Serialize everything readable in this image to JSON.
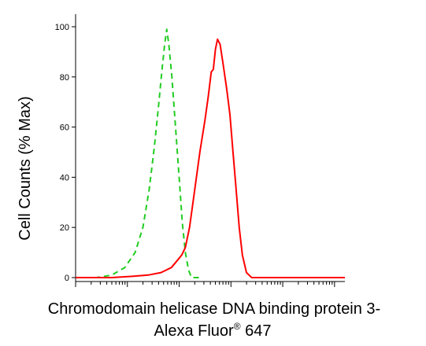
{
  "chart_data": {
    "type": "line",
    "ylabel": "Cell Counts (% Max)",
    "xlabel_line1": "Chromodomain helicase DNA binding protein 3-",
    "xlabel_line2_prefix": "Alexa Fluor",
    "xlabel_line2_mark": "®",
    "xlabel_line2_suffix": " 647",
    "y_ticks": [
      "0",
      "20",
      "40",
      "60",
      "80",
      "100"
    ],
    "ylim": [
      0,
      100
    ],
    "x_scale": "log",
    "xlim_decades": [
      0,
      5.2
    ],
    "series": [
      {
        "color": "#22cc22",
        "dash": "dashed",
        "points": [
          [
            0.0,
            0
          ],
          [
            0.4,
            0
          ],
          [
            0.7,
            1
          ],
          [
            0.95,
            4
          ],
          [
            1.15,
            10
          ],
          [
            1.3,
            20
          ],
          [
            1.42,
            35
          ],
          [
            1.52,
            52
          ],
          [
            1.6,
            68
          ],
          [
            1.67,
            83
          ],
          [
            1.72,
            93
          ],
          [
            1.76,
            99
          ],
          [
            1.8,
            93
          ],
          [
            1.86,
            80
          ],
          [
            1.93,
            60
          ],
          [
            2.0,
            40
          ],
          [
            2.06,
            22
          ],
          [
            2.12,
            10
          ],
          [
            2.18,
            3
          ],
          [
            2.24,
            0
          ],
          [
            2.4,
            0
          ]
        ]
      },
      {
        "color": "#ff0000",
        "dash": "solid",
        "points": [
          [
            0.0,
            0
          ],
          [
            0.7,
            0
          ],
          [
            1.1,
            0.5
          ],
          [
            1.4,
            1
          ],
          [
            1.65,
            2
          ],
          [
            1.85,
            4
          ],
          [
            1.97,
            7
          ],
          [
            2.05,
            9
          ],
          [
            2.12,
            12
          ],
          [
            2.2,
            20
          ],
          [
            2.3,
            35
          ],
          [
            2.4,
            50
          ],
          [
            2.5,
            63
          ],
          [
            2.56,
            72
          ],
          [
            2.62,
            82
          ],
          [
            2.66,
            83
          ],
          [
            2.7,
            91
          ],
          [
            2.74,
            95
          ],
          [
            2.79,
            93
          ],
          [
            2.85,
            85
          ],
          [
            2.92,
            75
          ],
          [
            2.98,
            65
          ],
          [
            3.04,
            50
          ],
          [
            3.1,
            35
          ],
          [
            3.16,
            20
          ],
          [
            3.22,
            9
          ],
          [
            3.3,
            2
          ],
          [
            3.4,
            0
          ],
          [
            5.2,
            0
          ]
        ]
      }
    ]
  }
}
